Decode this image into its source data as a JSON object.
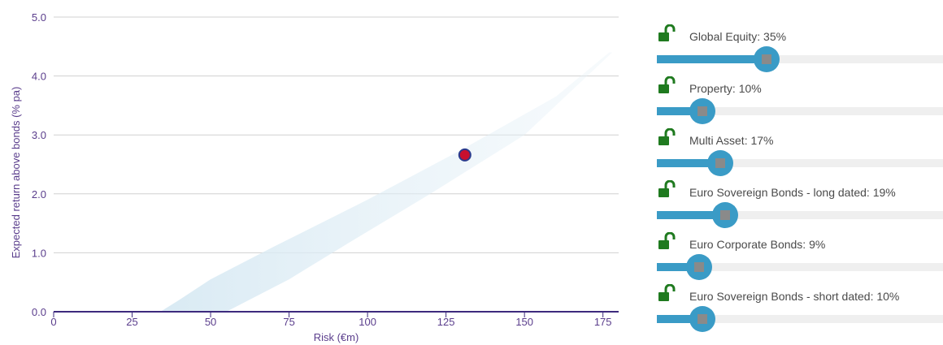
{
  "chart_data": {
    "type": "scatter",
    "xlabel": "Risk (€m)",
    "ylabel": "Expected return above bonds (% pa)",
    "xlim": [
      0,
      180
    ],
    "ylim": [
      0,
      5
    ],
    "x_ticks": [
      "0",
      "25",
      "50",
      "75",
      "100",
      "125",
      "150",
      "175"
    ],
    "y_ticks": [
      "0.0",
      "1.0",
      "2.0",
      "3.0",
      "4.0",
      "5.0"
    ],
    "grid": true,
    "frontier": [
      [
        34,
        0
      ],
      [
        40,
        0.2
      ],
      [
        50,
        0.55
      ],
      [
        70,
        1.1
      ],
      [
        100,
        1.9
      ],
      [
        130,
        2.75
      ],
      [
        160,
        3.65
      ],
      [
        177,
        4.4
      ],
      [
        178,
        4.4
      ],
      [
        150,
        3.0
      ],
      [
        120,
        2.0
      ],
      [
        95,
        1.2
      ],
      [
        75,
        0.55
      ],
      [
        55,
        0
      ]
    ],
    "point": {
      "x": 131,
      "y": 2.66
    },
    "colors": {
      "axis": "#3d2a7d",
      "grid": "#d0d0d0",
      "point_fill": "#c8102e",
      "point_stroke": "#2b3a8c",
      "frontier": "#d7e9f3",
      "label": "#5a3d8c"
    }
  },
  "sliders": [
    {
      "label": "Global Equity: 35%",
      "value": 35,
      "locked": false,
      "icon": "unlocked-padlock-icon"
    },
    {
      "label": "Property: 10%",
      "value": 10,
      "locked": false,
      "icon": "unlocked-padlock-icon"
    },
    {
      "label": "Multi Asset: 17%",
      "value": 17,
      "locked": false,
      "icon": "unlocked-padlock-icon"
    },
    {
      "label": "Euro Sovereign Bonds - long dated: 19%",
      "value": 19,
      "locked": false,
      "icon": "unlocked-padlock-icon"
    },
    {
      "label": "Euro Corporate Bonds: 9%",
      "value": 9,
      "locked": false,
      "icon": "unlocked-padlock-icon"
    },
    {
      "label": "Euro Sovereign Bonds - short dated: 10%",
      "value": 10,
      "locked": false,
      "icon": "unlocked-padlock-icon"
    }
  ],
  "colors": {
    "lock": "#1f7a1f",
    "slider": "#3a9bc6",
    "track": "#efefef",
    "thumb_core": "#8a8a8a"
  }
}
